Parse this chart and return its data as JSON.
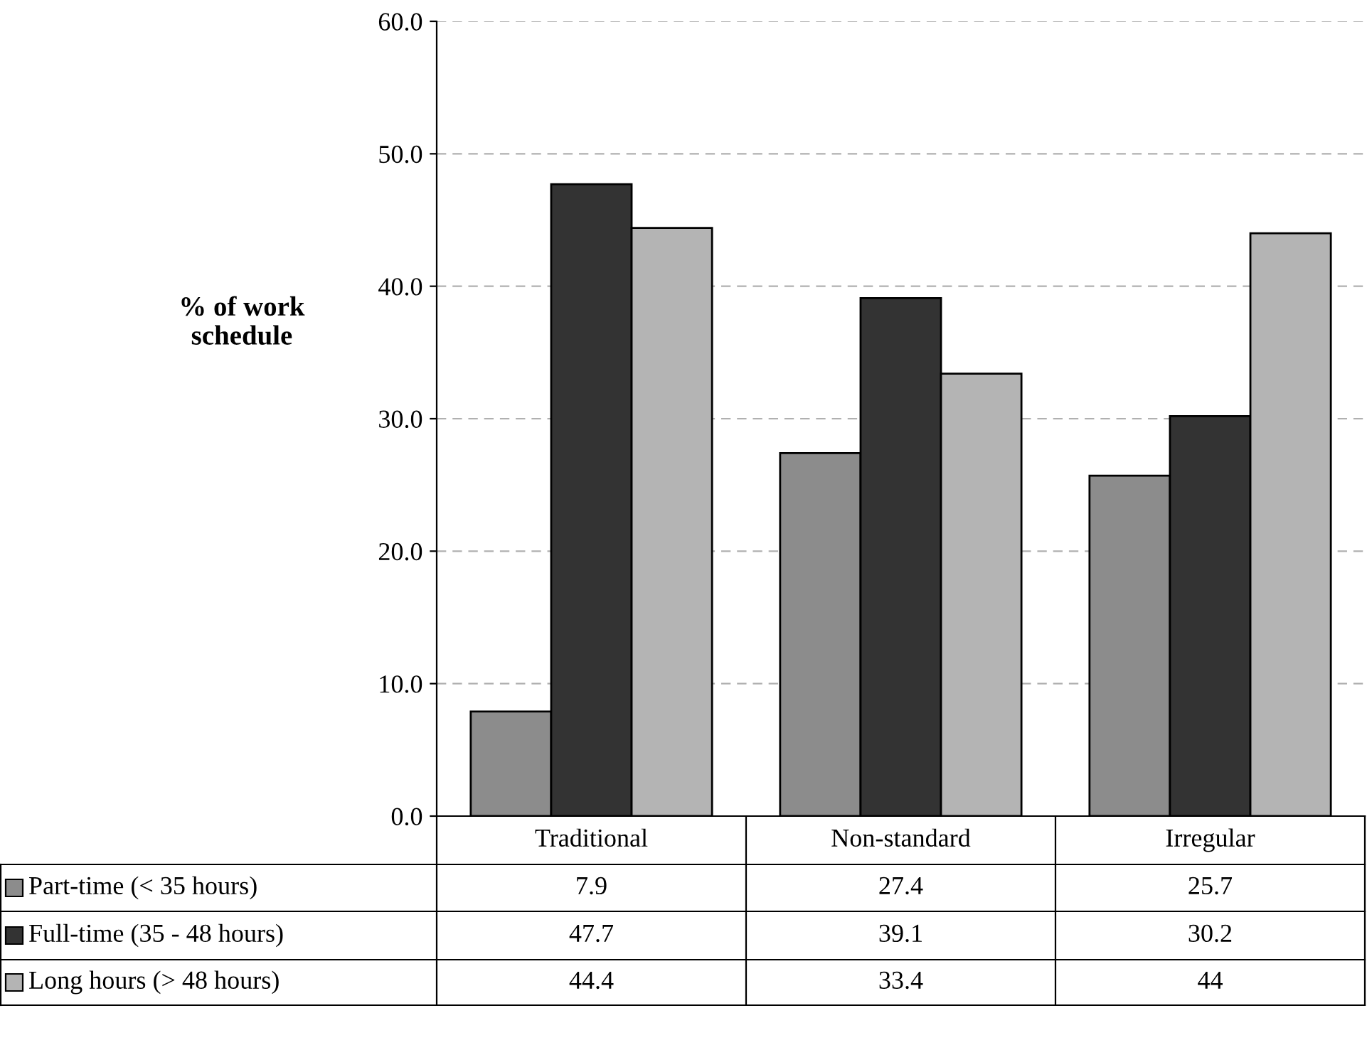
{
  "chart_data": {
    "type": "bar",
    "ylabel": "% of work\nschedule",
    "categories": [
      "Traditional",
      "Non-standard",
      "Irregular"
    ],
    "series": [
      {
        "name": "Part-time (< 35 hours)",
        "color": "#8c8c8c",
        "values": [
          7.9,
          27.4,
          25.7
        ]
      },
      {
        "name": "Full-time (35 - 48 hours)",
        "color": "#333333",
        "values": [
          47.7,
          39.1,
          30.2
        ]
      },
      {
        "name": "Long hours (> 48 hours)",
        "color": "#b4b4b4",
        "values": [
          44.4,
          33.4,
          44
        ]
      }
    ],
    "ylim": [
      0,
      60
    ],
    "yticks": [
      {
        "value": 0,
        "label": "0.0"
      },
      {
        "value": 10,
        "label": "10.0"
      },
      {
        "value": 20,
        "label": "20.0"
      },
      {
        "value": 30,
        "label": "30.0"
      },
      {
        "value": 40,
        "label": "40.0"
      },
      {
        "value": 50,
        "label": "50.0"
      },
      {
        "value": 60,
        "label": "60.0"
      }
    ],
    "grid": "y",
    "data_labels": true,
    "legend": "bottom"
  }
}
